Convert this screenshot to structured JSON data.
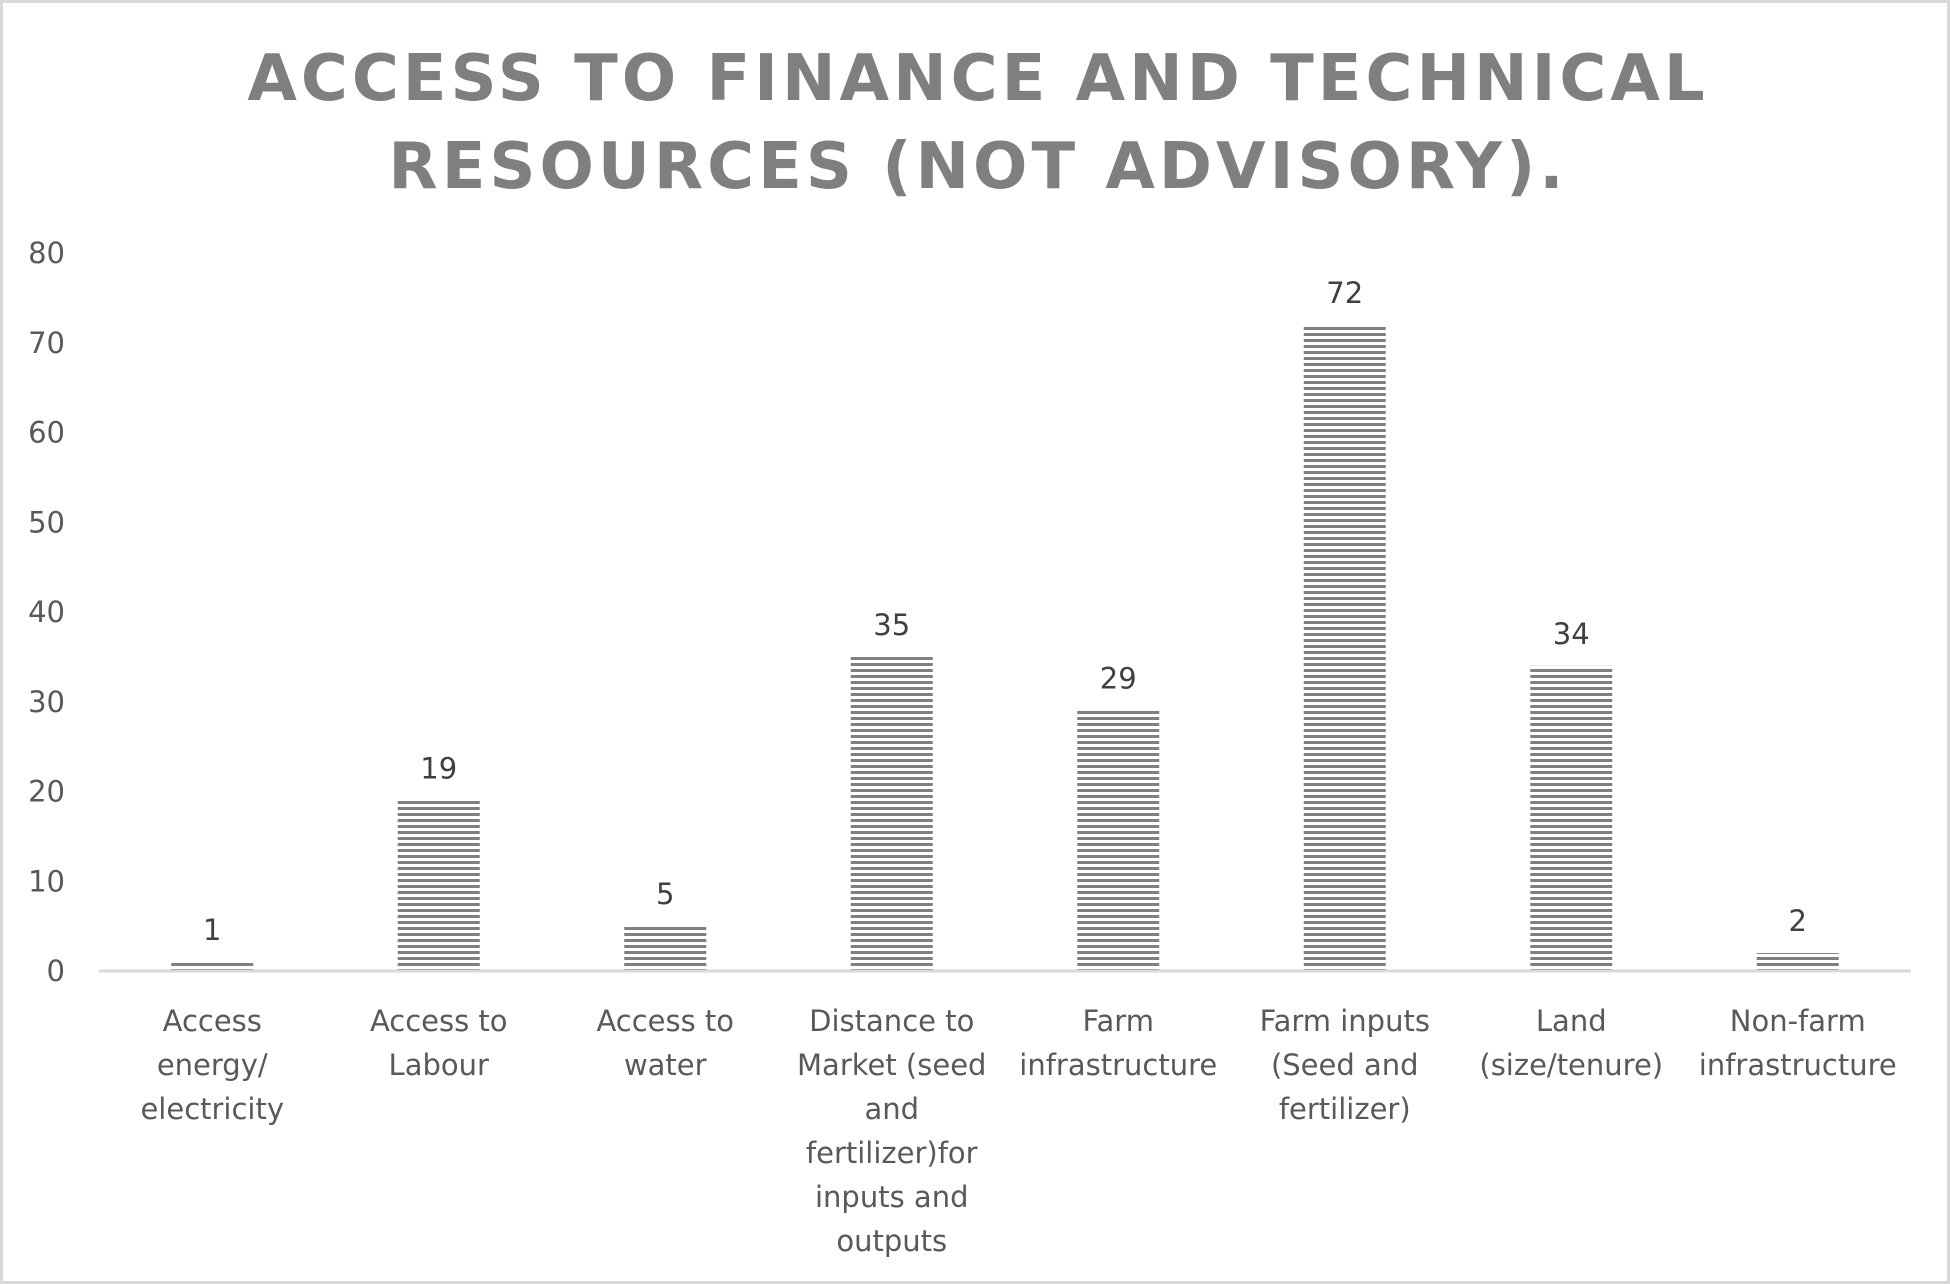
{
  "chart_data": {
    "type": "bar",
    "title_lines": [
      "ACCESS TO FINANCE AND TECHNICAL",
      "RESOURCES (NOT ADVISORY)."
    ],
    "categories": [
      "Access energy/ electricity",
      "Access to Labour",
      "Access to water",
      "Distance to Market (seed and fertilizer)for inputs and outputs",
      "Farm infrastructure",
      "Farm inputs (Seed and fertilizer)",
      "Land (size/tenure)",
      "Non-farm infrastructure"
    ],
    "values": [
      1,
      19,
      5,
      35,
      29,
      72,
      34,
      2
    ],
    "ylim": [
      0,
      80
    ],
    "yticks": [
      "0",
      "10",
      "20",
      "30",
      "40",
      "50",
      "60",
      "70",
      "80"
    ],
    "grid": false,
    "legend": "none",
    "data_labels": true,
    "bar_pattern": "horizontal-stripes",
    "colors": {
      "bar_stripe": "#7f7f7f",
      "bar_bg": "#ffffff",
      "axis": "#d9d9d9",
      "title": "#7f7f7f",
      "text": "#595959"
    }
  }
}
